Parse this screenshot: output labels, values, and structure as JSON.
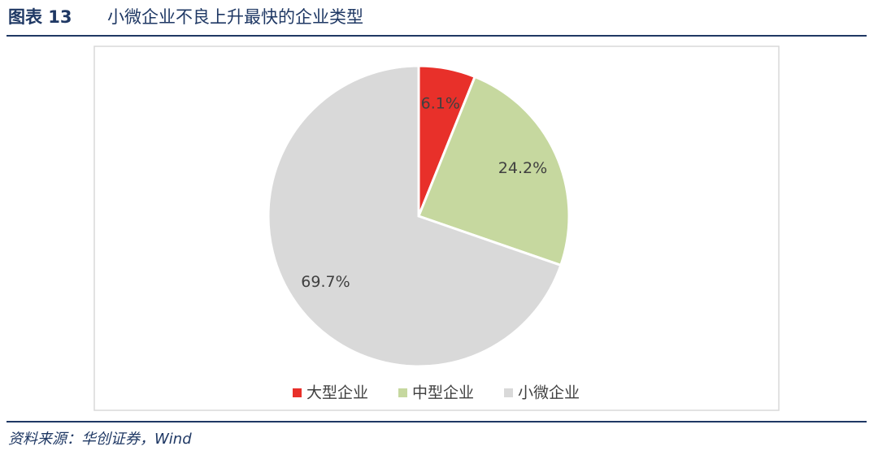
{
  "chart_data": {
    "type": "pie",
    "figure_label": "图表 13",
    "title": "小微企业不良上升最快的企业类型",
    "categories": [
      "大型企业",
      "中型企业",
      "小微企业"
    ],
    "values": [
      6.1,
      24.2,
      69.7
    ],
    "value_labels": [
      "6.1%",
      "24.2%",
      "69.7%"
    ],
    "colors": [
      "#e8302a",
      "#c6d89f",
      "#d9d9d9"
    ],
    "legend": "bottom",
    "source": "资料来源：华创证券，Wind"
  }
}
